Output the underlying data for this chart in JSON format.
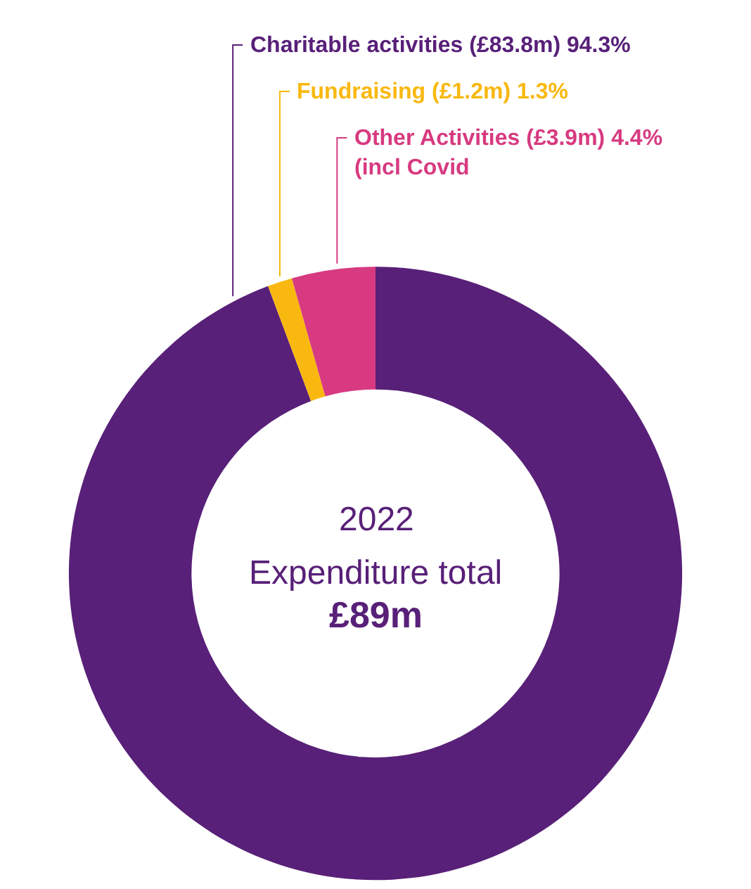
{
  "chart_data": {
    "type": "donut",
    "categories": [
      "Charitable activities (£83.8m) 94.3%",
      "Fundraising (£1.2m) 1.3%",
      "Other Activities (£3.9m) 4.4% (incl Covid"
    ],
    "values": [
      94.3,
      1.3,
      4.4
    ],
    "colors": [
      "#582078",
      "#f9b80f",
      "#d73a80"
    ],
    "legend": false,
    "annotations": [
      "2022",
      "Expenditure total",
      "£89m"
    ]
  }
}
